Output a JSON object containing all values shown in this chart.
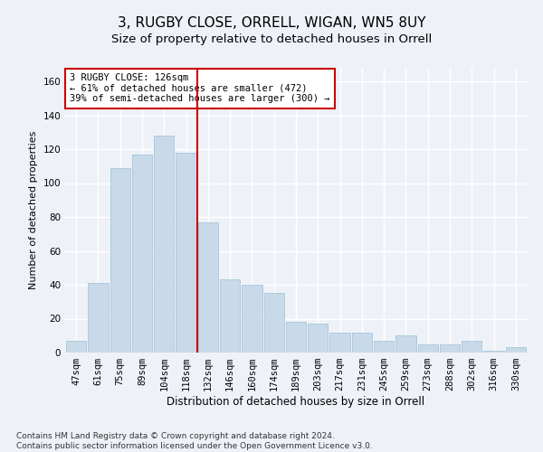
{
  "title": "3, RUGBY CLOSE, ORRELL, WIGAN, WN5 8UY",
  "subtitle": "Size of property relative to detached houses in Orrell",
  "xlabel": "Distribution of detached houses by size in Orrell",
  "ylabel": "Number of detached properties",
  "categories": [
    "47sqm",
    "61sqm",
    "75sqm",
    "89sqm",
    "104sqm",
    "118sqm",
    "132sqm",
    "146sqm",
    "160sqm",
    "174sqm",
    "189sqm",
    "203sqm",
    "217sqm",
    "231sqm",
    "245sqm",
    "259sqm",
    "273sqm",
    "288sqm",
    "302sqm",
    "316sqm",
    "330sqm"
  ],
  "values": [
    7,
    41,
    109,
    117,
    128,
    118,
    77,
    43,
    40,
    35,
    18,
    17,
    12,
    12,
    7,
    10,
    5,
    5,
    7,
    1,
    3
  ],
  "bar_color": "#c8daea",
  "bar_edge_color": "#a8c4d8",
  "vline_x_index": 5,
  "vline_color": "#cc0000",
  "annotation_text": "3 RUGBY CLOSE: 126sqm\n← 61% of detached houses are smaller (472)\n39% of semi-detached houses are larger (300) →",
  "annotation_box_color": "#ffffff",
  "annotation_box_edge": "#cc0000",
  "ylim": [
    0,
    168
  ],
  "yticks": [
    0,
    20,
    40,
    60,
    80,
    100,
    120,
    140,
    160
  ],
  "footer_line1": "Contains HM Land Registry data © Crown copyright and database right 2024.",
  "footer_line2": "Contains public sector information licensed under the Open Government Licence v3.0.",
  "bg_color": "#eef2f8",
  "grid_color": "#ffffff",
  "title_fontsize": 11,
  "subtitle_fontsize": 9.5,
  "tick_fontsize": 7.5,
  "ylabel_fontsize": 8,
  "xlabel_fontsize": 8.5,
  "footer_fontsize": 6.5,
  "annotation_fontsize": 7.5
}
